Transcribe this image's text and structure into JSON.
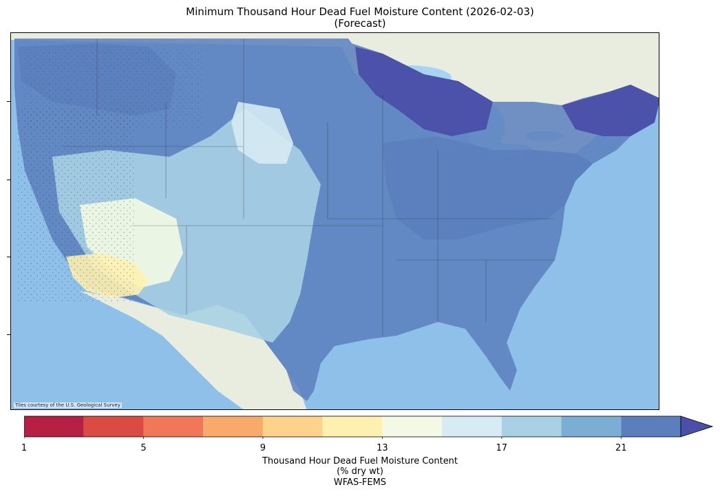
{
  "title": {
    "line1": "Minimum Thousand Hour Dead Fuel Moisture Content (2026-02-03)",
    "line2": "(Forecast)"
  },
  "map": {
    "attribution": "Tiles courtesy of the U.S. Geological Survey",
    "region": "Contiguous United States",
    "basemap_colors": {
      "ocean": "#8fc0ea",
      "land": "#e9ede0",
      "lakes": "#a9d3f3"
    }
  },
  "colorbar": {
    "label_line1": "Thousand Hour Dead Fuel Moisture Content",
    "label_line2": "(% dry wt)",
    "source": "WFAS-FEMS",
    "min": 1,
    "max": 23,
    "step": 2,
    "extend": "max",
    "tick_values": [
      1,
      5,
      9,
      13,
      17,
      21
    ],
    "tick_labels": [
      "1",
      "5",
      "9",
      "13",
      "17",
      "21"
    ],
    "bins": [
      {
        "from": 1,
        "to": 3,
        "color": "#b71f45"
      },
      {
        "from": 3,
        "to": 5,
        "color": "#dc4a44"
      },
      {
        "from": 5,
        "to": 7,
        "color": "#f07858"
      },
      {
        "from": 7,
        "to": 9,
        "color": "#f9a96a"
      },
      {
        "from": 9,
        "to": 11,
        "color": "#fdd38b"
      },
      {
        "from": 11,
        "to": 13,
        "color": "#fef1b0"
      },
      {
        "from": 13,
        "to": 15,
        "color": "#f3f9e4"
      },
      {
        "from": 15,
        "to": 17,
        "color": "#d6ebf4"
      },
      {
        "from": 17,
        "to": 19,
        "color": "#a9d0e4"
      },
      {
        "from": 19,
        "to": 21,
        "color": "#7aaed2"
      },
      {
        "from": 21,
        "to": 23,
        "color": "#5b7fbd"
      },
      {
        "from": 23,
        "to": null,
        "color": "#4a4fa8"
      }
    ]
  }
}
